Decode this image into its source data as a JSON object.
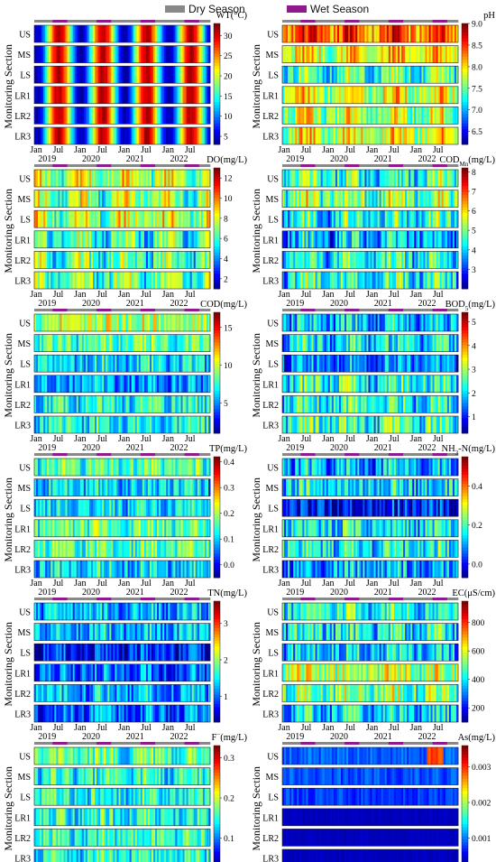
{
  "legend": {
    "dry_label": "Dry Season",
    "wet_label": "Wet Season",
    "dry_color": "#888888",
    "wet_color": "#8e1a8e"
  },
  "common": {
    "ylabel": "Monitoring Section",
    "sections": [
      "US",
      "MS",
      "LS",
      "LR1",
      "LR2",
      "LR3"
    ],
    "x_month_ticks": [
      "Jan",
      "Jul",
      "Jan",
      "Jul",
      "Jan",
      "Jul",
      "Jan",
      "Jul"
    ],
    "x_year_ticks": [
      "2019",
      "2020",
      "2021",
      "2022"
    ],
    "colormap": "jet"
  },
  "chart_data": [
    {
      "type": "heatmap",
      "param": "WT",
      "title": "WT(°C)",
      "cbar_ticks": [
        "30",
        "25",
        "20",
        "15",
        "10",
        "5"
      ],
      "vmin": 3,
      "vmax": 33,
      "shape": "seasonal_temp"
    },
    {
      "type": "heatmap",
      "param": "pH",
      "title": "pH",
      "cbar_ticks": [
        "9.0",
        "8.5",
        "8.0",
        "7.5",
        "7.0",
        "6.5"
      ],
      "vmin": 6.2,
      "vmax": 9.0,
      "shape": "ph"
    },
    {
      "type": "heatmap",
      "param": "DO",
      "title": "DO(mg/L)",
      "cbar_ticks": [
        "12",
        "10",
        "8",
        "6",
        "4",
        "2"
      ],
      "vmin": 1,
      "vmax": 13,
      "shape": "do"
    },
    {
      "type": "heatmap",
      "param": "CODMn",
      "title": "COD",
      "title_sub": "Mn",
      "title_tail": "(mg/L)",
      "cbar_ticks": [
        "8",
        "7",
        "6",
        "5",
        "4",
        "3"
      ],
      "vmin": 2,
      "vmax": 8.2,
      "shape": "codmn"
    },
    {
      "type": "heatmap",
      "param": "COD",
      "title": "COD(mg/L)",
      "cbar_ticks": [
        "15",
        "10",
        "5"
      ],
      "vmin": 1,
      "vmax": 17,
      "shape": "cod"
    },
    {
      "type": "heatmap",
      "param": "BOD5",
      "title": "BOD",
      "title_sub": "5",
      "title_tail": "(mg/L)",
      "cbar_ticks": [
        "5",
        "4",
        "3",
        "2",
        "1"
      ],
      "vmin": 0.3,
      "vmax": 5.4,
      "shape": "bod"
    },
    {
      "type": "heatmap",
      "param": "TP",
      "title": "TP(mg/L)",
      "cbar_ticks": [
        "0.4",
        "0.3",
        "0.2",
        "0.1",
        "0.0"
      ],
      "vmin": -0.05,
      "vmax": 0.42,
      "shape": "tp"
    },
    {
      "type": "heatmap",
      "param": "NH3-N",
      "title": "NH",
      "title_sub": "3",
      "title_tail": "-N(mg/L)",
      "cbar_ticks": [
        "0.4",
        "0.2",
        "0.0"
      ],
      "vmin": -0.07,
      "vmax": 0.55,
      "shape": "nh3"
    },
    {
      "type": "heatmap",
      "param": "TN",
      "title": "TN(mg/L)",
      "cbar_ticks": [
        "3",
        "2",
        "1"
      ],
      "vmin": 0.3,
      "vmax": 3.6,
      "shape": "tn"
    },
    {
      "type": "heatmap",
      "param": "EC",
      "title": "EC(μS/cm)",
      "cbar_ticks": [
        "800",
        "600",
        "400",
        "200"
      ],
      "vmin": 100,
      "vmax": 950,
      "shape": "ec"
    },
    {
      "type": "heatmap",
      "param": "F-",
      "title": "F",
      "title_sup": "−",
      "title_tail": "(mg/L)",
      "cbar_ticks": [
        "0.3",
        "0.2",
        "0.1"
      ],
      "vmin": 0.03,
      "vmax": 0.33,
      "shape": "f"
    },
    {
      "type": "heatmap",
      "param": "As",
      "title": "As(mg/L)",
      "cbar_ticks": [
        "0.003",
        "0.002",
        "0.001"
      ],
      "vmin": 0.0002,
      "vmax": 0.0036,
      "shape": "as"
    }
  ]
}
